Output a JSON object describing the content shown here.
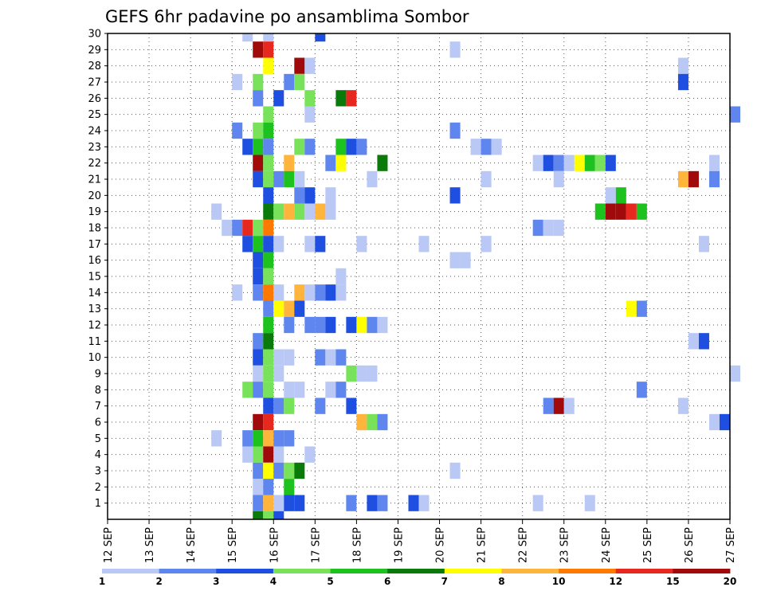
{
  "chart_data": {
    "type": "heatmap",
    "title": "GEFS 6hr padavine po ansamblima Sombor",
    "xlabel": "",
    "ylabel": "",
    "x_ticks": [
      "12 SEP",
      "13 SEP",
      "14 SEP",
      "15 SEP",
      "16 SEP",
      "17 SEP",
      "18 SEP",
      "19 SEP",
      "20 SEP",
      "21 SEP",
      "22 SEP",
      "23 SEP",
      "24 SEP",
      "25 SEP",
      "26 SEP",
      "27 SEP"
    ],
    "x_range_days": [
      12,
      27
    ],
    "y_ticks": [
      "1",
      "2",
      "3",
      "4",
      "5",
      "6",
      "7",
      "8",
      "9",
      "10",
      "11",
      "12",
      "13",
      "14",
      "15",
      "16",
      "17",
      "18",
      "19",
      "20",
      "21",
      "22",
      "23",
      "24",
      "25",
      "26",
      "27",
      "28",
      "29",
      "30"
    ],
    "y_range": [
      0,
      30
    ],
    "step_hours": 6,
    "grid": true,
    "colorbar": {
      "labels": [
        "1",
        "2",
        "3",
        "4",
        "5",
        "6",
        "7",
        "8",
        "10",
        "12",
        "15",
        "20"
      ],
      "colors": [
        "#b9c8f5",
        "#5f86ee",
        "#1e4fe0",
        "#78e35a",
        "#1ec21e",
        "#0a7a0a",
        "#ffff00",
        "#ffb43c",
        "#ff7800",
        "#e6281e",
        "#a00a0a"
      ]
    },
    "cells": [
      {
        "member": 30,
        "day": 15.375,
        "level": 0
      },
      {
        "member": 30,
        "day": 15.875,
        "level": 0
      },
      {
        "member": 30,
        "day": 17.125,
        "level": 2
      },
      {
        "member": 29,
        "day": 15.625,
        "level": 10
      },
      {
        "member": 29,
        "day": 15.875,
        "level": 9
      },
      {
        "member": 29,
        "day": 20.375,
        "level": 0
      },
      {
        "member": 28,
        "day": 15.875,
        "level": 6
      },
      {
        "member": 28,
        "day": 16.625,
        "level": 10
      },
      {
        "member": 28,
        "day": 16.875,
        "level": 0
      },
      {
        "member": 28,
        "day": 25.875,
        "level": 0
      },
      {
        "member": 27,
        "day": 15.125,
        "level": 0
      },
      {
        "member": 27,
        "day": 15.625,
        "level": 3
      },
      {
        "member": 27,
        "day": 16.375,
        "level": 1
      },
      {
        "member": 27,
        "day": 16.625,
        "level": 3
      },
      {
        "member": 27,
        "day": 25.875,
        "level": 2
      },
      {
        "member": 26,
        "day": 15.625,
        "level": 1
      },
      {
        "member": 26,
        "day": 16.125,
        "level": 2
      },
      {
        "member": 26,
        "day": 16.875,
        "level": 3
      },
      {
        "member": 26,
        "day": 17.625,
        "level": 5
      },
      {
        "member": 26,
        "day": 17.875,
        "level": 9
      },
      {
        "member": 25,
        "day": 15.875,
        "level": 3
      },
      {
        "member": 25,
        "day": 16.875,
        "level": 0
      },
      {
        "member": 25,
        "day": 27.125,
        "level": 1
      },
      {
        "member": 24,
        "day": 15.125,
        "level": 1
      },
      {
        "member": 24,
        "day": 15.625,
        "level": 3
      },
      {
        "member": 24,
        "day": 15.875,
        "level": 4
      },
      {
        "member": 24,
        "day": 20.375,
        "level": 1
      },
      {
        "member": 23,
        "day": 15.375,
        "level": 2
      },
      {
        "member": 23,
        "day": 15.625,
        "level": 4
      },
      {
        "member": 23,
        "day": 15.875,
        "level": 1
      },
      {
        "member": 23,
        "day": 16.625,
        "level": 3
      },
      {
        "member": 23,
        "day": 16.875,
        "level": 1
      },
      {
        "member": 23,
        "day": 17.625,
        "level": 4
      },
      {
        "member": 23,
        "day": 17.875,
        "level": 2
      },
      {
        "member": 23,
        "day": 18.125,
        "level": 1
      },
      {
        "member": 23,
        "day": 20.875,
        "level": 0
      },
      {
        "member": 23,
        "day": 21.125,
        "level": 1
      },
      {
        "member": 23,
        "day": 21.375,
        "level": 0
      },
      {
        "member": 22,
        "day": 15.625,
        "level": 10
      },
      {
        "member": 22,
        "day": 15.875,
        "level": 3
      },
      {
        "member": 22,
        "day": 16.375,
        "level": 7
      },
      {
        "member": 22,
        "day": 17.375,
        "level": 1
      },
      {
        "member": 22,
        "day": 17.625,
        "level": 6
      },
      {
        "member": 22,
        "day": 18.625,
        "level": 5
      },
      {
        "member": 22,
        "day": 22.375,
        "level": 0
      },
      {
        "member": 22,
        "day": 22.625,
        "level": 2
      },
      {
        "member": 22,
        "day": 22.875,
        "level": 1
      },
      {
        "member": 22,
        "day": 23.125,
        "level": 0
      },
      {
        "member": 22,
        "day": 23.375,
        "level": 6
      },
      {
        "member": 22,
        "day": 23.625,
        "level": 4
      },
      {
        "member": 22,
        "day": 23.875,
        "level": 3
      },
      {
        "member": 22,
        "day": 24.125,
        "level": 2
      },
      {
        "member": 22,
        "day": 26.625,
        "level": 0
      },
      {
        "member": 21,
        "day": 15.625,
        "level": 2
      },
      {
        "member": 21,
        "day": 15.875,
        "level": 3
      },
      {
        "member": 21,
        "day": 16.125,
        "level": 1
      },
      {
        "member": 21,
        "day": 16.375,
        "level": 4
      },
      {
        "member": 21,
        "day": 16.625,
        "level": 0
      },
      {
        "member": 21,
        "day": 18.375,
        "level": 0
      },
      {
        "member": 21,
        "day": 21.125,
        "level": 0
      },
      {
        "member": 21,
        "day": 22.875,
        "level": 0
      },
      {
        "member": 21,
        "day": 25.875,
        "level": 7
      },
      {
        "member": 21,
        "day": 26.125,
        "level": 10
      },
      {
        "member": 21,
        "day": 26.625,
        "level": 1
      },
      {
        "member": 20,
        "day": 15.875,
        "level": 2
      },
      {
        "member": 20,
        "day": 16.625,
        "level": 1
      },
      {
        "member": 20,
        "day": 16.875,
        "level": 2
      },
      {
        "member": 20,
        "day": 17.375,
        "level": 0
      },
      {
        "member": 20,
        "day": 20.375,
        "level": 2
      },
      {
        "member": 20,
        "day": 24.125,
        "level": 0
      },
      {
        "member": 20,
        "day": 24.375,
        "level": 4
      },
      {
        "member": 19,
        "day": 14.625,
        "level": 0
      },
      {
        "member": 19,
        "day": 15.875,
        "level": 5
      },
      {
        "member": 19,
        "day": 16.125,
        "level": 3
      },
      {
        "member": 19,
        "day": 16.375,
        "level": 7
      },
      {
        "member": 19,
        "day": 16.625,
        "level": 3
      },
      {
        "member": 19,
        "day": 16.875,
        "level": 0
      },
      {
        "member": 19,
        "day": 17.125,
        "level": 7
      },
      {
        "member": 19,
        "day": 17.375,
        "level": 0
      },
      {
        "member": 19,
        "day": 23.875,
        "level": 4
      },
      {
        "member": 19,
        "day": 24.125,
        "level": 10
      },
      {
        "member": 19,
        "day": 24.375,
        "level": 10
      },
      {
        "member": 19,
        "day": 24.625,
        "level": 9
      },
      {
        "member": 19,
        "day": 24.875,
        "level": 4
      },
      {
        "member": 18,
        "day": 14.875,
        "level": 0
      },
      {
        "member": 18,
        "day": 15.125,
        "level": 1
      },
      {
        "member": 18,
        "day": 15.375,
        "level": 9
      },
      {
        "member": 18,
        "day": 15.625,
        "level": 3
      },
      {
        "member": 18,
        "day": 15.875,
        "level": 8
      },
      {
        "member": 18,
        "day": 22.375,
        "level": 1
      },
      {
        "member": 18,
        "day": 22.625,
        "level": 0
      },
      {
        "member": 18,
        "day": 22.875,
        "level": 0
      },
      {
        "member": 17,
        "day": 15.375,
        "level": 2
      },
      {
        "member": 17,
        "day": 15.625,
        "level": 4
      },
      {
        "member": 17,
        "day": 15.875,
        "level": 2
      },
      {
        "member": 17,
        "day": 16.125,
        "level": 0
      },
      {
        "member": 17,
        "day": 16.875,
        "level": 0
      },
      {
        "member": 17,
        "day": 17.125,
        "level": 2
      },
      {
        "member": 17,
        "day": 18.125,
        "level": 0
      },
      {
        "member": 17,
        "day": 19.625,
        "level": 0
      },
      {
        "member": 17,
        "day": 21.125,
        "level": 0
      },
      {
        "member": 17,
        "day": 26.375,
        "level": 0
      },
      {
        "member": 16,
        "day": 15.625,
        "level": 2
      },
      {
        "member": 16,
        "day": 15.875,
        "level": 4
      },
      {
        "member": 16,
        "day": 20.375,
        "level": 0
      },
      {
        "member": 16,
        "day": 20.625,
        "level": 0
      },
      {
        "member": 15,
        "day": 15.625,
        "level": 2
      },
      {
        "member": 15,
        "day": 15.875,
        "level": 3
      },
      {
        "member": 15,
        "day": 17.625,
        "level": 0
      },
      {
        "member": 14,
        "day": 15.125,
        "level": 0
      },
      {
        "member": 14,
        "day": 15.625,
        "level": 1
      },
      {
        "member": 14,
        "day": 15.875,
        "level": 8
      },
      {
        "member": 14,
        "day": 16.125,
        "level": 0
      },
      {
        "member": 14,
        "day": 16.625,
        "level": 7
      },
      {
        "member": 14,
        "day": 16.875,
        "level": 0
      },
      {
        "member": 14,
        "day": 17.125,
        "level": 1
      },
      {
        "member": 14,
        "day": 17.375,
        "level": 2
      },
      {
        "member": 14,
        "day": 17.625,
        "level": 0
      },
      {
        "member": 13,
        "day": 15.875,
        "level": 1
      },
      {
        "member": 13,
        "day": 16.125,
        "level": 6
      },
      {
        "member": 13,
        "day": 16.375,
        "level": 7
      },
      {
        "member": 13,
        "day": 16.625,
        "level": 2
      },
      {
        "member": 13,
        "day": 24.625,
        "level": 6
      },
      {
        "member": 13,
        "day": 24.875,
        "level": 1
      },
      {
        "member": 12,
        "day": 15.875,
        "level": 4
      },
      {
        "member": 12,
        "day": 16.375,
        "level": 1
      },
      {
        "member": 12,
        "day": 16.875,
        "level": 1
      },
      {
        "member": 12,
        "day": 17.125,
        "level": 1
      },
      {
        "member": 12,
        "day": 17.375,
        "level": 2
      },
      {
        "member": 12,
        "day": 17.875,
        "level": 2
      },
      {
        "member": 12,
        "day": 18.125,
        "level": 6
      },
      {
        "member": 12,
        "day": 18.375,
        "level": 1
      },
      {
        "member": 12,
        "day": 18.625,
        "level": 0
      },
      {
        "member": 11,
        "day": 15.625,
        "level": 1
      },
      {
        "member": 11,
        "day": 15.875,
        "level": 5
      },
      {
        "member": 11,
        "day": 26.125,
        "level": 0
      },
      {
        "member": 11,
        "day": 26.375,
        "level": 2
      },
      {
        "member": 10,
        "day": 15.625,
        "level": 2
      },
      {
        "member": 10,
        "day": 15.875,
        "level": 3
      },
      {
        "member": 10,
        "day": 16.125,
        "level": 0
      },
      {
        "member": 10,
        "day": 16.375,
        "level": 0
      },
      {
        "member": 10,
        "day": 17.125,
        "level": 1
      },
      {
        "member": 10,
        "day": 17.375,
        "level": 0
      },
      {
        "member": 10,
        "day": 17.625,
        "level": 1
      },
      {
        "member": 9,
        "day": 15.625,
        "level": 0
      },
      {
        "member": 9,
        "day": 15.875,
        "level": 3
      },
      {
        "member": 9,
        "day": 16.125,
        "level": 0
      },
      {
        "member": 9,
        "day": 17.875,
        "level": 3
      },
      {
        "member": 9,
        "day": 18.125,
        "level": 0
      },
      {
        "member": 9,
        "day": 18.375,
        "level": 0
      },
      {
        "member": 9,
        "day": 27.125,
        "level": 0
      },
      {
        "member": 8,
        "day": 15.375,
        "level": 3
      },
      {
        "member": 8,
        "day": 15.625,
        "level": 1
      },
      {
        "member": 8,
        "day": 15.875,
        "level": 3
      },
      {
        "member": 8,
        "day": 16.375,
        "level": 0
      },
      {
        "member": 8,
        "day": 16.625,
        "level": 0
      },
      {
        "member": 8,
        "day": 17.375,
        "level": 0
      },
      {
        "member": 8,
        "day": 17.625,
        "level": 1
      },
      {
        "member": 8,
        "day": 24.875,
        "level": 1
      },
      {
        "member": 7,
        "day": 15.875,
        "level": 2
      },
      {
        "member": 7,
        "day": 16.125,
        "level": 1
      },
      {
        "member": 7,
        "day": 16.375,
        "level": 3
      },
      {
        "member": 7,
        "day": 17.125,
        "level": 1
      },
      {
        "member": 7,
        "day": 17.875,
        "level": 2
      },
      {
        "member": 7,
        "day": 22.625,
        "level": 1
      },
      {
        "member": 7,
        "day": 22.875,
        "level": 10
      },
      {
        "member": 7,
        "day": 23.125,
        "level": 0
      },
      {
        "member": 7,
        "day": 25.875,
        "level": 0
      },
      {
        "member": 6,
        "day": 15.625,
        "level": 10
      },
      {
        "member": 6,
        "day": 15.875,
        "level": 9
      },
      {
        "member": 6,
        "day": 18.125,
        "level": 7
      },
      {
        "member": 6,
        "day": 18.375,
        "level": 3
      },
      {
        "member": 6,
        "day": 18.625,
        "level": 1
      },
      {
        "member": 6,
        "day": 26.625,
        "level": 0
      },
      {
        "member": 6,
        "day": 26.875,
        "level": 2
      },
      {
        "member": 5,
        "day": 14.625,
        "level": 0
      },
      {
        "member": 5,
        "day": 15.375,
        "level": 1
      },
      {
        "member": 5,
        "day": 15.625,
        "level": 4
      },
      {
        "member": 5,
        "day": 15.875,
        "level": 7
      },
      {
        "member": 5,
        "day": 16.125,
        "level": 1
      },
      {
        "member": 5,
        "day": 16.375,
        "level": 1
      },
      {
        "member": 4,
        "day": 15.375,
        "level": 0
      },
      {
        "member": 4,
        "day": 15.625,
        "level": 3
      },
      {
        "member": 4,
        "day": 15.875,
        "level": 10
      },
      {
        "member": 4,
        "day": 16.125,
        "level": 0
      },
      {
        "member": 4,
        "day": 16.875,
        "level": 0
      },
      {
        "member": 3,
        "day": 15.625,
        "level": 1
      },
      {
        "member": 3,
        "day": 15.875,
        "level": 6
      },
      {
        "member": 3,
        "day": 16.125,
        "level": 1
      },
      {
        "member": 3,
        "day": 16.375,
        "level": 3
      },
      {
        "member": 3,
        "day": 16.625,
        "level": 5
      },
      {
        "member": 3,
        "day": 20.375,
        "level": 0
      },
      {
        "member": 2,
        "day": 15.625,
        "level": 0
      },
      {
        "member": 2,
        "day": 15.875,
        "level": 1
      },
      {
        "member": 2,
        "day": 16.375,
        "level": 4
      },
      {
        "member": 1,
        "day": 15.625,
        "level": 1
      },
      {
        "member": 1,
        "day": 15.875,
        "level": 7
      },
      {
        "member": 1,
        "day": 16.125,
        "level": 0
      },
      {
        "member": 1,
        "day": 16.375,
        "level": 2
      },
      {
        "member": 1,
        "day": 16.625,
        "level": 2
      },
      {
        "member": 1,
        "day": 17.875,
        "level": 1
      },
      {
        "member": 1,
        "day": 18.375,
        "level": 2
      },
      {
        "member": 1,
        "day": 18.625,
        "level": 1
      },
      {
        "member": 1,
        "day": 19.375,
        "level": 2
      },
      {
        "member": 1,
        "day": 19.625,
        "level": 0
      },
      {
        "member": 1,
        "day": 22.375,
        "level": 0
      },
      {
        "member": 1,
        "day": 23.625,
        "level": 0
      },
      {
        "member": 0,
        "day": 15.625,
        "level": 5
      },
      {
        "member": 0,
        "day": 15.875,
        "level": 3
      },
      {
        "member": 0,
        "day": 16.125,
        "level": 2
      }
    ]
  }
}
